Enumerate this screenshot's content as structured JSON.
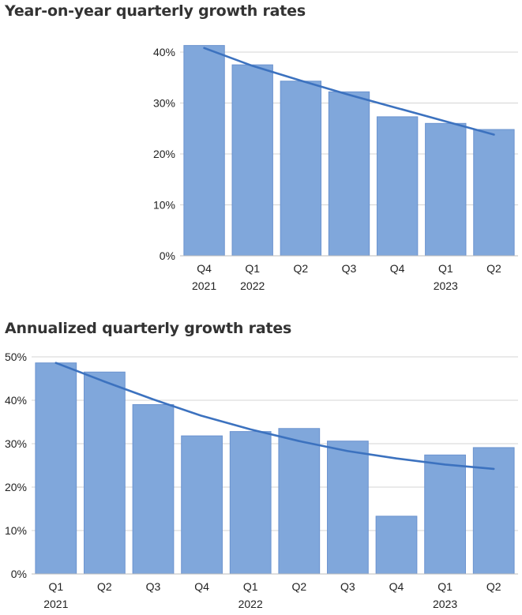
{
  "chart_data": [
    {
      "type": "bar",
      "title": "Year-on-year quarterly growth rates",
      "categories": [
        "Q4",
        "Q1",
        "Q2",
        "Q3",
        "Q4",
        "Q1",
        "Q2"
      ],
      "year_labels": [
        "2021",
        "2022",
        "",
        "",
        "",
        "2023",
        ""
      ],
      "values": [
        41.3,
        37.5,
        34.3,
        32.2,
        27.3,
        26.0,
        24.8
      ],
      "trendline": [
        40.8,
        37.3,
        34.4,
        31.6,
        29.0,
        26.4,
        23.8
      ],
      "ylim": [
        0,
        40
      ],
      "yticks": [
        "0%",
        "10%",
        "20%",
        "30%",
        "40%"
      ],
      "xlabel": "",
      "ylabel": "",
      "grid": true,
      "colors": {
        "bar": "#80a7db",
        "bar_edge": "#6b93cf",
        "trend": "#3c72bf",
        "grid": "#d4d4d4"
      }
    },
    {
      "type": "bar",
      "title": "Annualized quarterly growth rates",
      "categories": [
        "Q1",
        "Q2",
        "Q3",
        "Q4",
        "Q1",
        "Q2",
        "Q3",
        "Q4",
        "Q1",
        "Q2"
      ],
      "year_labels": [
        "2021",
        "",
        "",
        "",
        "2022",
        "",
        "",
        "",
        "2023",
        ""
      ],
      "values": [
        48.6,
        46.5,
        39.0,
        31.8,
        32.8,
        33.5,
        30.6,
        13.3,
        27.4,
        29.1
      ],
      "trendline": [
        48.6,
        44.3,
        40.2,
        36.4,
        33.3,
        30.6,
        28.3,
        26.6,
        25.2,
        24.2
      ],
      "ylim": [
        0,
        50
      ],
      "yticks": [
        "0%",
        "10%",
        "20%",
        "30%",
        "40%",
        "50%"
      ],
      "xlabel": "",
      "ylabel": "",
      "grid": true,
      "colors": {
        "bar": "#80a7db",
        "bar_edge": "#6b93cf",
        "trend": "#3c72bf",
        "grid": "#d4d4d4"
      }
    }
  ]
}
